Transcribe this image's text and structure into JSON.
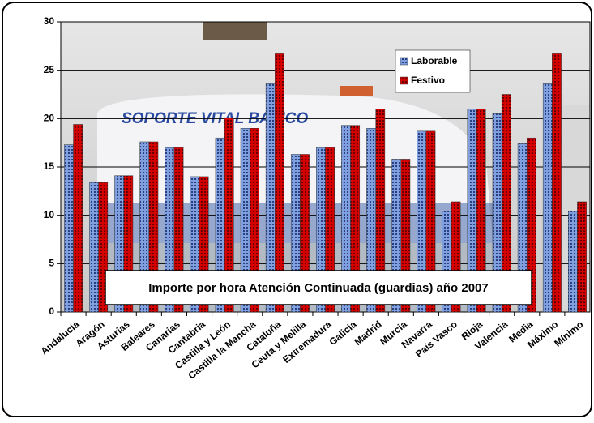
{
  "chart_data": {
    "type": "bar",
    "title": "Importe por hora Atención Continuada (guardias) año 2007",
    "background_text": "SOPORTE VITAL BASICO",
    "categories": [
      "Andalucía",
      "Aragón",
      "Asturias",
      "Baleares",
      "Canarias",
      "Cantabria",
      "Castilla y León",
      "Castilla la Mancha",
      "Cataluña",
      "Ceuta y Melilla",
      "Extremadura",
      "Galicia",
      "Madrid",
      "Murcia",
      "Navarra",
      "País Vasco",
      "Rioja",
      "Valencia",
      "Media",
      "Máximo",
      "Mínimo"
    ],
    "series": [
      {
        "name": "Laborable",
        "color": "#7f9fdf",
        "values": [
          17.3,
          13.4,
          14.1,
          17.6,
          17.0,
          14.0,
          18.0,
          19.0,
          23.6,
          16.3,
          17.0,
          19.3,
          19.0,
          15.8,
          18.7,
          10.4,
          21.0,
          20.5,
          17.4,
          23.6,
          10.4
        ]
      },
      {
        "name": "Festivo",
        "color": "#d40000",
        "values": [
          19.4,
          13.4,
          14.1,
          17.6,
          17.0,
          14.0,
          20.1,
          19.0,
          26.7,
          16.3,
          17.0,
          19.3,
          21.0,
          15.8,
          18.7,
          11.4,
          21.0,
          22.5,
          18.0,
          26.7,
          11.4
        ]
      }
    ],
    "ylim": [
      0,
      30
    ],
    "yticks": [
      0,
      5,
      10,
      15,
      20,
      25,
      30
    ],
    "grid": true,
    "legend": "top-right"
  }
}
